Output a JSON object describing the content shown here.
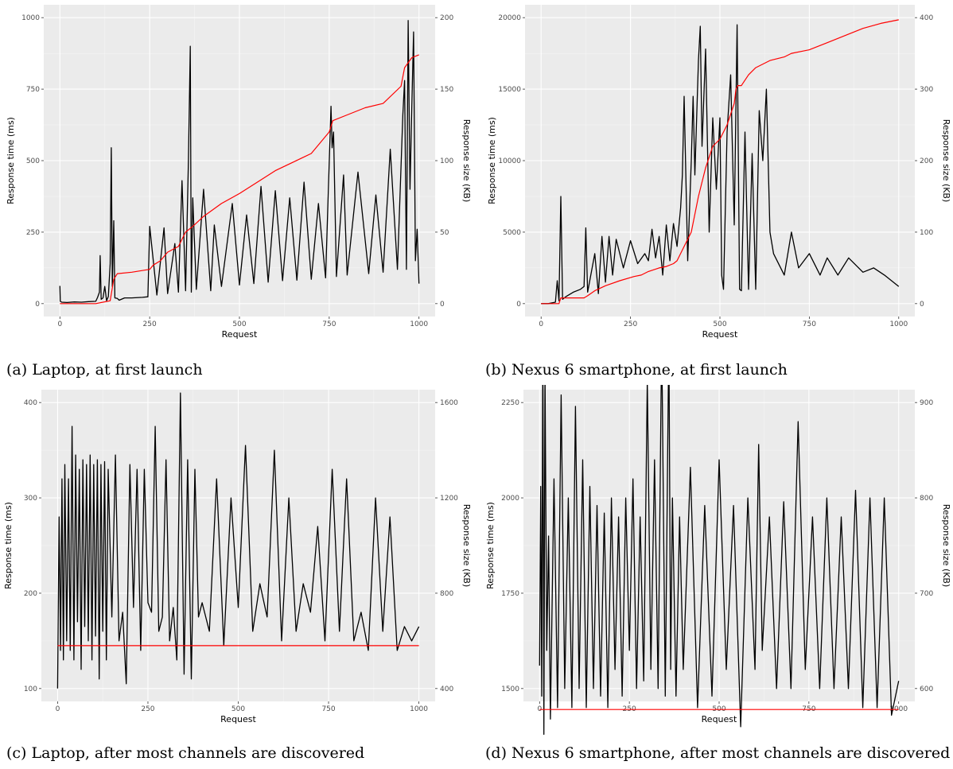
{
  "colors": {
    "response_time": "#000000",
    "response_size": "#ff0000",
    "panel_bg": "#ebebeb"
  },
  "chart_data": [
    {
      "type": "line",
      "caption": "(a) Laptop, at first launch",
      "xlabel": "Request",
      "ylabel": "Response time (ms)",
      "y2label": "Response size (KB)",
      "xlim": [
        0,
        1000
      ],
      "ylim": [
        0,
        1000
      ],
      "y2lim": [
        0,
        200
      ],
      "xticks": [
        0,
        250,
        500,
        750,
        1000
      ],
      "yticks": [
        0,
        250,
        500,
        750,
        1000
      ],
      "y2ticks": [
        0,
        50,
        100,
        150,
        200
      ],
      "grid": true,
      "series": [
        {
          "axis": "left",
          "color": "#000000",
          "x": [
            0,
            1,
            5,
            20,
            40,
            60,
            80,
            100,
            105,
            110,
            112,
            115,
            120,
            125,
            130,
            135,
            140,
            143,
            146,
            150,
            153,
            160,
            165,
            180,
            200,
            230,
            245,
            250,
            270,
            290,
            300,
            320,
            330,
            340,
            350,
            358,
            363,
            366,
            370,
            380,
            400,
            420,
            430,
            450,
            480,
            500,
            520,
            540,
            560,
            580,
            600,
            620,
            640,
            660,
            680,
            700,
            720,
            740,
            755,
            758,
            762,
            770,
            790,
            800,
            830,
            860,
            880,
            900,
            920,
            940,
            955,
            960,
            965,
            970,
            975,
            980,
            985,
            990,
            995,
            1000
          ],
          "values": [
            62,
            8,
            5,
            4,
            6,
            5,
            7,
            8,
            22,
            40,
            168,
            15,
            20,
            60,
            10,
            25,
            140,
            545,
            60,
            290,
            20,
            18,
            12,
            20,
            20,
            22,
            24,
            270,
            30,
            265,
            35,
            210,
            40,
            430,
            45,
            505,
            900,
            40,
            370,
            50,
            400,
            45,
            275,
            60,
            350,
            65,
            310,
            70,
            410,
            75,
            395,
            80,
            370,
            82,
            425,
            85,
            350,
            90,
            690,
            545,
            600,
            95,
            450,
            100,
            460,
            105,
            380,
            110,
            540,
            120,
            660,
            780,
            120,
            990,
            400,
            690,
            950,
            150,
            260,
            70
          ]
        },
        {
          "axis": "right",
          "color": "#ff0000",
          "x": [
            0,
            100,
            140,
            150,
            160,
            200,
            250,
            260,
            280,
            300,
            330,
            350,
            370,
            400,
            450,
            500,
            550,
            600,
            650,
            700,
            750,
            760,
            800,
            850,
            900,
            950,
            960,
            980,
            1000
          ],
          "values": [
            0,
            0,
            2,
            17,
            21,
            22,
            24,
            27,
            30,
            36,
            40,
            50,
            54,
            61,
            70,
            77,
            85,
            93,
            99,
            105,
            120,
            128,
            132,
            137,
            140,
            152,
            165,
            172,
            174
          ]
        }
      ]
    },
    {
      "type": "line",
      "caption": "(b) Nexus 6 smartphone, at first launch",
      "xlabel": "Request",
      "ylabel": "Response time (ms)",
      "y2label": "Response size (KB)",
      "xlim": [
        0,
        1000
      ],
      "ylim": [
        0,
        20000
      ],
      "y2lim": [
        0,
        400
      ],
      "xticks": [
        0,
        250,
        500,
        750,
        1000
      ],
      "yticks": [
        0,
        5000,
        10000,
        15000,
        20000
      ],
      "y2ticks": [
        0,
        100,
        200,
        300,
        400
      ],
      "grid": true,
      "series": [
        {
          "axis": "left",
          "color": "#000000",
          "x": [
            0,
            20,
            40,
            45,
            50,
            55,
            60,
            70,
            90,
            110,
            120,
            125,
            130,
            150,
            160,
            170,
            180,
            190,
            200,
            210,
            230,
            250,
            270,
            290,
            300,
            310,
            320,
            330,
            340,
            350,
            360,
            370,
            380,
            390,
            395,
            400,
            410,
            420,
            425,
            430,
            440,
            445,
            450,
            460,
            470,
            480,
            490,
            500,
            505,
            510,
            520,
            530,
            540,
            548,
            555,
            560,
            570,
            580,
            590,
            600,
            610,
            620,
            630,
            640,
            650,
            680,
            700,
            720,
            750,
            780,
            800,
            830,
            860,
            900,
            930,
            960,
            1000
          ],
          "values": [
            0,
            0,
            100,
            1600,
            200,
            7500,
            300,
            500,
            800,
            1000,
            1200,
            5300,
            800,
            3500,
            700,
            4700,
            1500,
            4700,
            2000,
            4500,
            2500,
            4400,
            2800,
            3500,
            3000,
            5200,
            3200,
            4700,
            2000,
            5500,
            3000,
            5600,
            4000,
            6700,
            9000,
            14500,
            3000,
            10000,
            14500,
            9000,
            17000,
            19400,
            11000,
            17800,
            5000,
            13000,
            8000,
            13000,
            2000,
            1000,
            12000,
            16000,
            5500,
            19500,
            1000,
            900,
            12000,
            1000,
            10500,
            1000,
            13500,
            10000,
            15000,
            5000,
            3500,
            2000,
            5000,
            2500,
            3500,
            2000,
            3200,
            2000,
            3200,
            2200,
            2500,
            2000,
            1200
          ]
        },
        {
          "axis": "right",
          "color": "#ff0000",
          "x": [
            0,
            50,
            55,
            120,
            130,
            150,
            180,
            220,
            260,
            280,
            300,
            330,
            350,
            370,
            380,
            400,
            420,
            440,
            460,
            480,
            500,
            520,
            540,
            545,
            550,
            560,
            580,
            600,
            640,
            680,
            700,
            750,
            800,
            850,
            900,
            950,
            1000
          ],
          "values": [
            0,
            0,
            8,
            8,
            11,
            18,
            25,
            32,
            38,
            40,
            45,
            50,
            52,
            56,
            60,
            80,
            100,
            150,
            190,
            220,
            230,
            250,
            280,
            300,
            305,
            305,
            320,
            330,
            340,
            345,
            350,
            355,
            365,
            375,
            385,
            392,
            397
          ]
        }
      ]
    },
    {
      "type": "line",
      "caption": "(c) Laptop, after most channels are discovered",
      "xlabel": "Request",
      "ylabel": "Response time (ms)",
      "y2label": "Response size (KB)",
      "xlim": [
        0,
        1000
      ],
      "ylim": [
        100,
        400
      ],
      "y2lim": [
        400,
        1600
      ],
      "xticks": [
        0,
        250,
        500,
        750,
        1000
      ],
      "yticks": [
        100,
        200,
        300,
        400
      ],
      "y2ticks": [
        400,
        800,
        1200,
        1600
      ],
      "grid": true,
      "series": [
        {
          "axis": "left",
          "color": "#000000",
          "x": [
            0,
            4,
            8,
            12,
            16,
            20,
            25,
            30,
            35,
            40,
            45,
            50,
            55,
            60,
            65,
            70,
            75,
            80,
            85,
            90,
            95,
            100,
            105,
            110,
            115,
            120,
            125,
            130,
            135,
            140,
            150,
            160,
            170,
            180,
            190,
            200,
            210,
            220,
            230,
            240,
            250,
            260,
            270,
            280,
            290,
            300,
            310,
            320,
            330,
            340,
            350,
            360,
            370,
            380,
            390,
            400,
            420,
            440,
            460,
            480,
            500,
            520,
            540,
            560,
            580,
            600,
            620,
            640,
            660,
            680,
            700,
            720,
            740,
            760,
            780,
            800,
            820,
            840,
            860,
            880,
            900,
            920,
            940,
            960,
            980,
            1000
          ],
          "values": [
            100,
            280,
            140,
            320,
            130,
            335,
            150,
            320,
            140,
            375,
            130,
            345,
            170,
            330,
            120,
            340,
            165,
            335,
            150,
            345,
            130,
            335,
            155,
            340,
            110,
            335,
            160,
            338,
            130,
            330,
            175,
            345,
            150,
            180,
            105,
            335,
            185,
            330,
            140,
            330,
            190,
            180,
            375,
            160,
            175,
            340,
            150,
            185,
            130,
            410,
            115,
            340,
            110,
            330,
            175,
            190,
            160,
            320,
            145,
            300,
            185,
            355,
            160,
            210,
            175,
            350,
            150,
            300,
            160,
            210,
            180,
            270,
            150,
            330,
            160,
            320,
            150,
            180,
            140,
            300,
            160,
            280,
            140,
            165,
            150,
            165
          ]
        },
        {
          "axis": "right",
          "color": "#ff0000",
          "x": [
            0,
            1000
          ],
          "values": [
            580,
            580
          ]
        }
      ]
    },
    {
      "type": "line",
      "caption": "(d) Nexus 6 smartphone, after most channels are discovered",
      "xlabel": "Request",
      "ylabel": "Response time (ms)",
      "y2label": "Response size (KB)",
      "xlim": [
        0,
        1000
      ],
      "ylim": [
        1500,
        2250
      ],
      "y2lim": [
        600,
        900
      ],
      "xticks": [
        0,
        250,
        500,
        750,
        1000
      ],
      "yticks": [
        1500,
        1750,
        2000,
        2250
      ],
      "y2ticks": [
        600,
        700,
        800,
        900
      ],
      "grid": true,
      "series": [
        {
          "axis": "left",
          "color": "#000000",
          "x": [
            0,
            3,
            6,
            9,
            12,
            15,
            20,
            25,
            30,
            40,
            50,
            60,
            70,
            80,
            90,
            100,
            110,
            120,
            130,
            140,
            150,
            160,
            170,
            180,
            190,
            200,
            210,
            220,
            230,
            240,
            250,
            260,
            270,
            280,
            290,
            300,
            310,
            320,
            330,
            340,
            350,
            360,
            365,
            370,
            380,
            390,
            400,
            420,
            440,
            460,
            480,
            500,
            520,
            540,
            560,
            580,
            600,
            610,
            620,
            640,
            660,
            680,
            700,
            720,
            740,
            760,
            780,
            800,
            820,
            840,
            860,
            880,
            900,
            920,
            940,
            960,
            980,
            1000
          ],
          "values": [
            1560,
            2030,
            1480,
            2430,
            1380,
            2340,
            1600,
            1900,
            1420,
            2050,
            1450,
            2270,
            1500,
            2000,
            1450,
            2240,
            1500,
            2100,
            1450,
            2030,
            1500,
            1980,
            1480,
            1960,
            1450,
            2000,
            1550,
            1950,
            1480,
            2000,
            1600,
            2050,
            1500,
            1950,
            1520,
            2310,
            1550,
            2100,
            1500,
            2430,
            1480,
            2430,
            1550,
            2000,
            1480,
            1950,
            1550,
            2080,
            1450,
            1980,
            1480,
            2100,
            1550,
            1980,
            1400,
            2000,
            1550,
            2140,
            1600,
            1950,
            1500,
            1990,
            1500,
            2200,
            1550,
            1950,
            1500,
            2000,
            1500,
            1950,
            1500,
            2020,
            1450,
            2000,
            1450,
            2000,
            1430,
            1520
          ]
        },
        {
          "axis": "right",
          "color": "#ff0000",
          "x": [
            0,
            1000
          ],
          "values": [
            578,
            578
          ]
        }
      ]
    }
  ]
}
